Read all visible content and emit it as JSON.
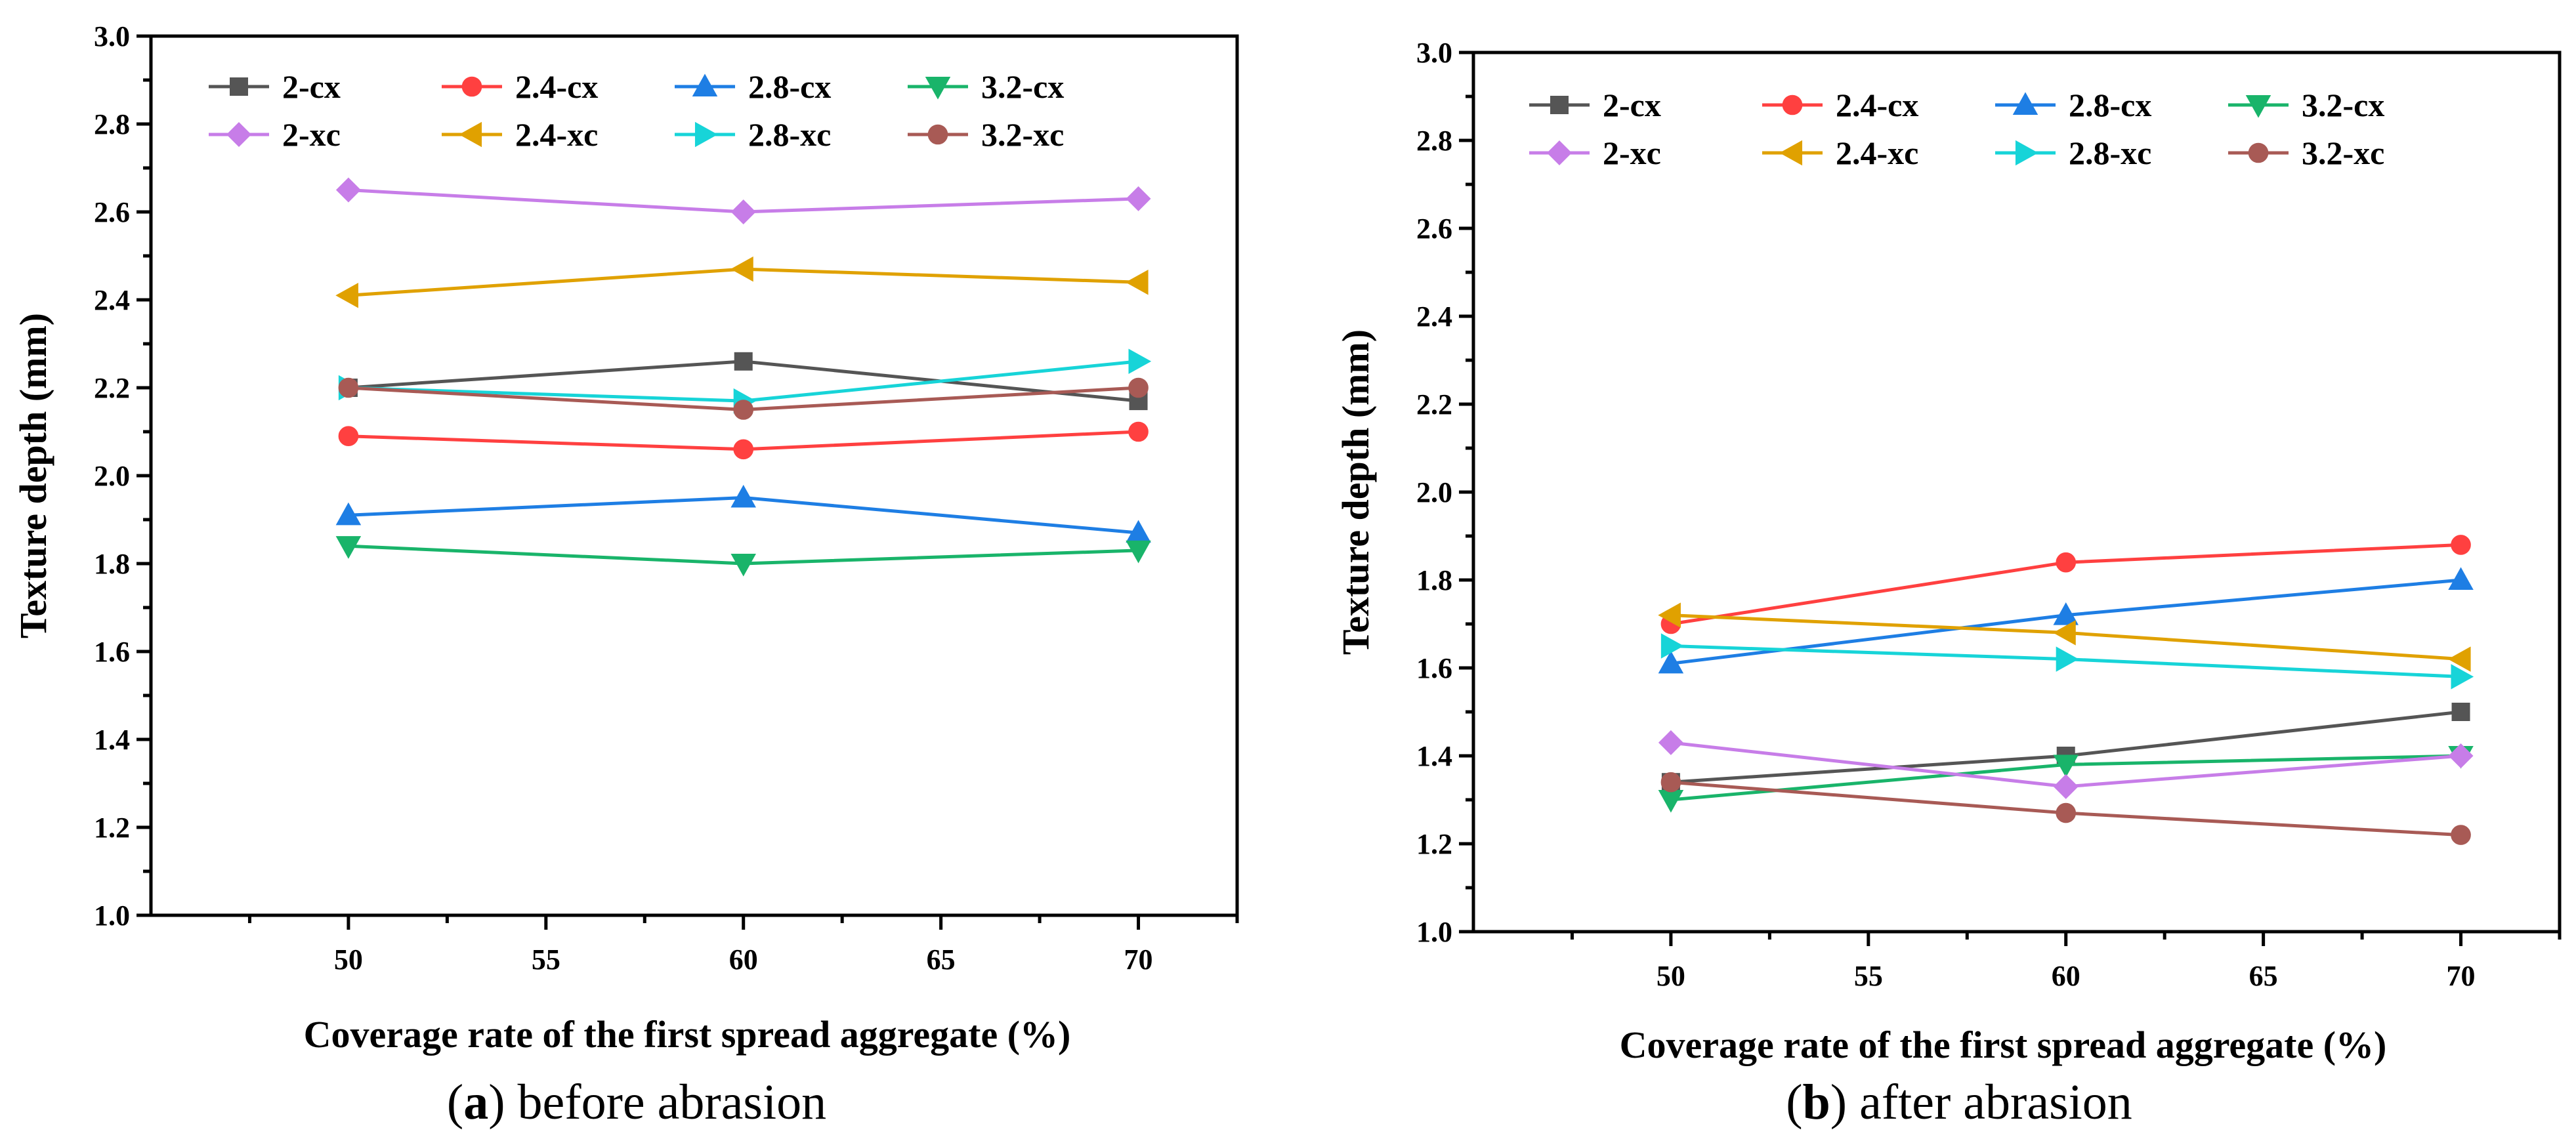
{
  "chart_data": [
    {
      "type": "line",
      "caption_letter": "a",
      "caption_text": " before abrasion",
      "xlabel": "Coverage rate of the first spread aggregate (%)",
      "ylabel": "Texture depth (mm)",
      "x": [
        50,
        60,
        70
      ],
      "xlim": [
        45,
        72.5
      ],
      "xticks": [
        50,
        55,
        60,
        65,
        70
      ],
      "ylim": [
        1.0,
        3.0
      ],
      "yticks": [
        1.0,
        1.2,
        1.4,
        1.6,
        1.8,
        2.0,
        2.2,
        2.4,
        2.6,
        2.8,
        3.0
      ],
      "legend_position": "top-left",
      "series": [
        {
          "name": "2-cx",
          "color": "#555555",
          "marker": "square",
          "values": [
            2.2,
            2.26,
            2.17
          ]
        },
        {
          "name": "2.4-cx",
          "color": "#ff4040",
          "marker": "circle",
          "values": [
            2.09,
            2.06,
            2.1
          ]
        },
        {
          "name": "2.8-cx",
          "color": "#1e7ee4",
          "marker": "triangle-up",
          "values": [
            1.91,
            1.95,
            1.87
          ]
        },
        {
          "name": "3.2-cx",
          "color": "#19b46a",
          "marker": "triangle-down",
          "values": [
            1.84,
            1.8,
            1.83
          ]
        },
        {
          "name": "2-xc",
          "color": "#c77de8",
          "marker": "diamond",
          "values": [
            2.65,
            2.6,
            2.63
          ]
        },
        {
          "name": "2.4-xc",
          "color": "#e0a100",
          "marker": "triangle-left",
          "values": [
            2.41,
            2.47,
            2.44
          ]
        },
        {
          "name": "2.8-xc",
          "color": "#17d4d8",
          "marker": "triangle-right",
          "values": [
            2.2,
            2.17,
            2.26
          ]
        },
        {
          "name": "3.2-xc",
          "color": "#a85a55",
          "marker": "circle",
          "values": [
            2.2,
            2.15,
            2.2
          ]
        }
      ]
    },
    {
      "type": "line",
      "caption_letter": "b",
      "caption_text": " after abrasion",
      "xlabel": "Coverage rate of the first spread aggregate (%)",
      "ylabel": "Texture depth (mm)",
      "x": [
        50,
        60,
        70
      ],
      "xlim": [
        45,
        72.5
      ],
      "xticks": [
        50,
        55,
        60,
        65,
        70
      ],
      "ylim": [
        1.0,
        3.0
      ],
      "yticks": [
        1.0,
        1.2,
        1.4,
        1.6,
        1.8,
        2.0,
        2.2,
        2.4,
        2.6,
        2.8,
        3.0
      ],
      "legend_position": "top-left",
      "series": [
        {
          "name": "2-cx",
          "color": "#555555",
          "marker": "square",
          "values": [
            1.34,
            1.4,
            1.5
          ]
        },
        {
          "name": "2.4-cx",
          "color": "#ff4040",
          "marker": "circle",
          "values": [
            1.7,
            1.84,
            1.88
          ]
        },
        {
          "name": "2.8-cx",
          "color": "#1e7ee4",
          "marker": "triangle-up",
          "values": [
            1.61,
            1.72,
            1.8
          ]
        },
        {
          "name": "3.2-cx",
          "color": "#19b46a",
          "marker": "triangle-down",
          "values": [
            1.3,
            1.38,
            1.4
          ]
        },
        {
          "name": "2-xc",
          "color": "#c77de8",
          "marker": "diamond",
          "values": [
            1.43,
            1.33,
            1.4
          ]
        },
        {
          "name": "2.4-xc",
          "color": "#e0a100",
          "marker": "triangle-left",
          "values": [
            1.72,
            1.68,
            1.62
          ]
        },
        {
          "name": "2.8-xc",
          "color": "#17d4d8",
          "marker": "triangle-right",
          "values": [
            1.65,
            1.62,
            1.58
          ]
        },
        {
          "name": "3.2-xc",
          "color": "#a85a55",
          "marker": "circle",
          "values": [
            1.34,
            1.27,
            1.22
          ]
        }
      ]
    }
  ]
}
